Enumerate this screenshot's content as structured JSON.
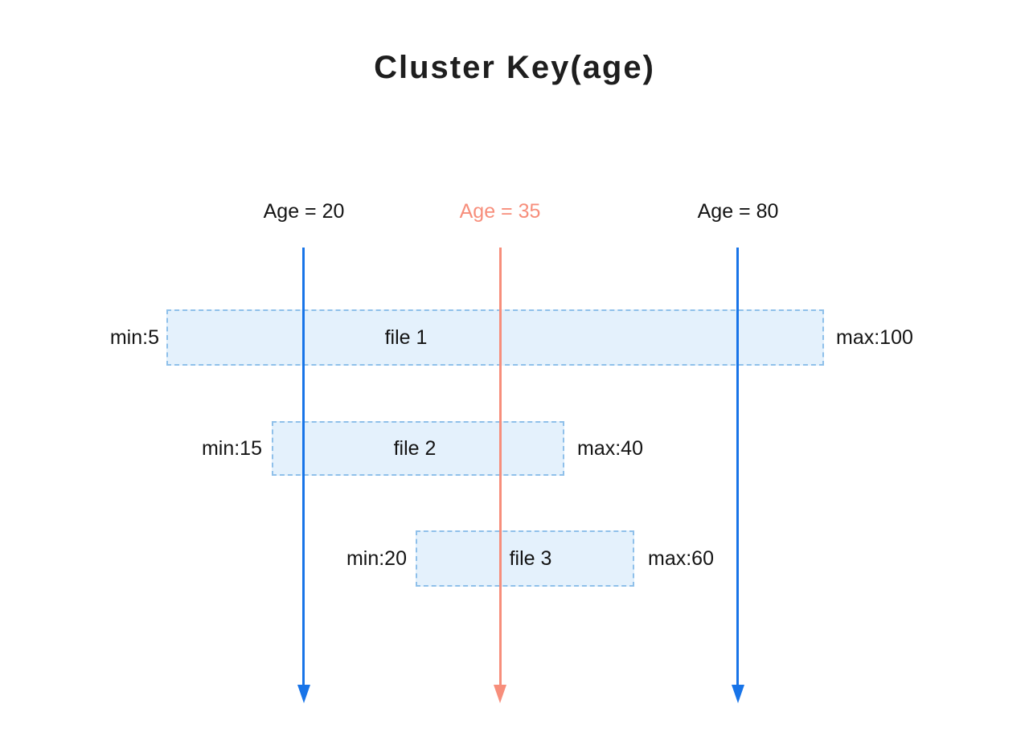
{
  "title": "Cluster Key(age)",
  "colors": {
    "blue": "#1874E8",
    "salmon": "#F78E7B",
    "box_fill": "#E4F1FC",
    "box_border": "#8FC0EA",
    "text": "#141414",
    "title_color": "#1E1E1E",
    "background": "#FFFFFF"
  },
  "age_markers": [
    {
      "label": "Age = 20",
      "value": 20,
      "color": "blue"
    },
    {
      "label": "Age = 35",
      "value": 35,
      "color": "salmon"
    },
    {
      "label": "Age = 80",
      "value": 80,
      "color": "blue"
    }
  ],
  "files": [
    {
      "name": "file 1",
      "min": 5,
      "max": 100,
      "min_label": "min:5",
      "max_label": "max:100"
    },
    {
      "name": "file 2",
      "min": 15,
      "max": 40,
      "min_label": "min:15",
      "max_label": "max:40"
    },
    {
      "name": "file 3",
      "min": 20,
      "max": 60,
      "min_label": "min:20",
      "max_label": "max:60"
    }
  ]
}
